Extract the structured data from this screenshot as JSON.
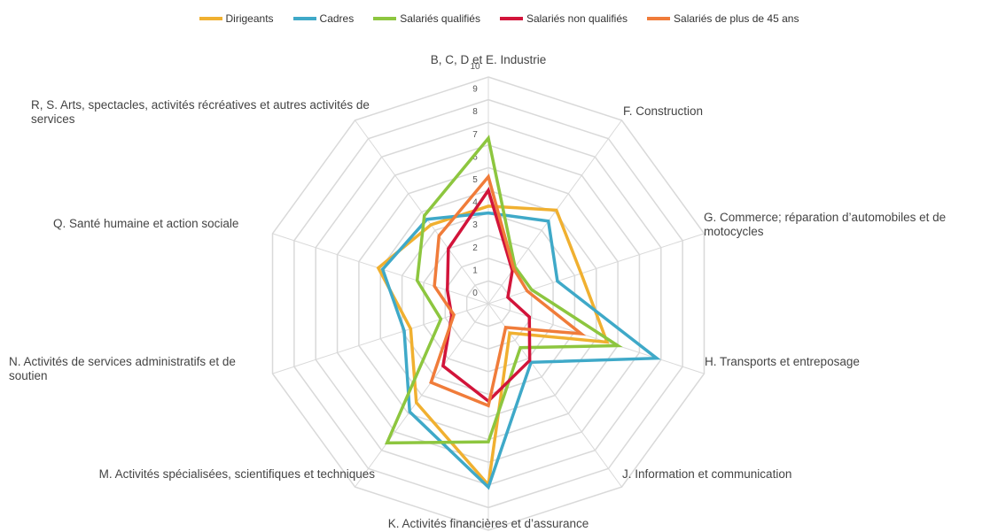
{
  "chart_data": {
    "type": "radar",
    "categories": [
      "B, C, D et E. Industrie",
      "F. Construction",
      "G. Commerce; réparation d’automobiles et de motocycles",
      "H. Transports et entreposage",
      "J. Information et communication",
      "K. Activités financières et d’assurance",
      "M. Activités spécialisées, scientifiques et techniques",
      "N. Activités de services administratifs et de soutien",
      "Q. Santé humaine et action sociale",
      "R, S. Arts, spectacles, activités récréatives et autres activités de services"
    ],
    "series": [
      {
        "name": "Dirigeants",
        "color": "#f0b030",
        "values": [
          4.3,
          5.1,
          4.3,
          5.5,
          1.6,
          8.0,
          5.4,
          3.6,
          5.1,
          4.3
        ]
      },
      {
        "name": "Cadres",
        "color": "#3fa9c8",
        "values": [
          4.0,
          4.5,
          3.2,
          7.8,
          3.2,
          8.1,
          5.9,
          3.9,
          4.9,
          4.6
        ]
      },
      {
        "name": "Salariés qualifiés",
        "color": "#8dc63f",
        "values": [
          7.3,
          2.0,
          2.0,
          6.0,
          2.4,
          6.1,
          7.6,
          2.2,
          3.3,
          4.8
        ]
      },
      {
        "name": "Salariés non qualifiés",
        "color": "#d2143a",
        "values": [
          5.0,
          1.8,
          0.9,
          1.9,
          3.1,
          4.3,
          3.4,
          1.7,
          1.9,
          3.0
        ]
      },
      {
        "name": "Salariés de plus de 45 ans",
        "color": "#f07c3a",
        "values": [
          5.6,
          1.9,
          1.8,
          4.3,
          1.3,
          4.5,
          4.3,
          1.6,
          2.5,
          3.7
        ]
      }
    ],
    "rlim": [
      0,
      10
    ],
    "rticks": [
      0,
      1,
      2,
      3,
      4,
      5,
      6,
      7,
      8,
      9,
      10
    ],
    "grid": true
  }
}
